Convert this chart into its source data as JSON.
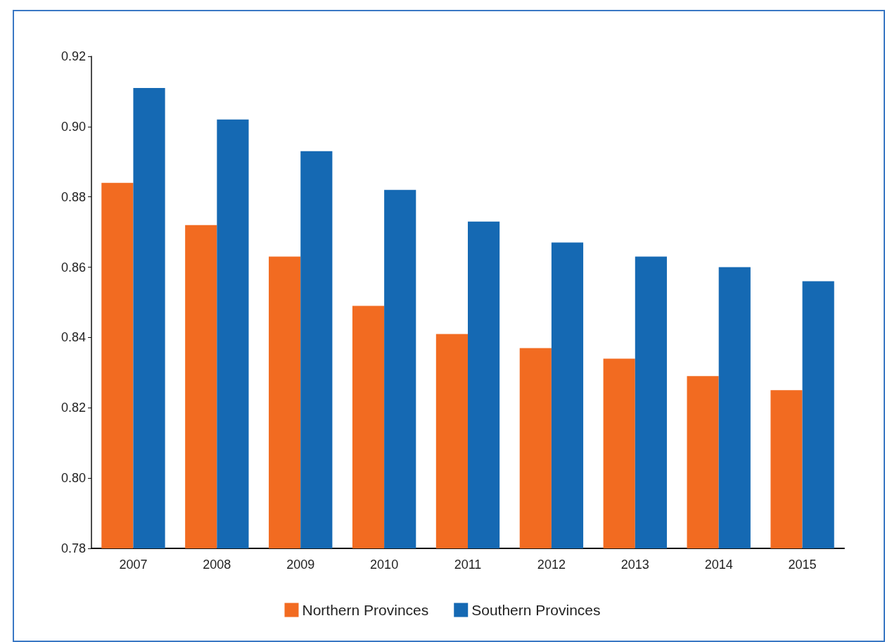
{
  "chart_data": {
    "type": "bar",
    "categories": [
      "2007",
      "2008",
      "2009",
      "2010",
      "2011",
      "2012",
      "2013",
      "2014",
      "2015"
    ],
    "series": [
      {
        "name": "Northern Provinces",
        "color": "#f26b21",
        "values": [
          0.884,
          0.872,
          0.863,
          0.849,
          0.841,
          0.837,
          0.834,
          0.829,
          0.825
        ]
      },
      {
        "name": "Southern Provinces",
        "color": "#1569b3",
        "values": [
          0.911,
          0.902,
          0.893,
          0.882,
          0.873,
          0.867,
          0.863,
          0.86,
          0.856
        ]
      }
    ],
    "ylim": [
      0.78,
      0.92
    ],
    "yticks": [
      0.78,
      {
        "value": 0.8,
        "label": "0.80"
      },
      0.82,
      0.84,
      0.86,
      0.88,
      {
        "value": 0.9,
        "label": "0.90"
      },
      0.92
    ],
    "grid": false,
    "legend": "bottom"
  }
}
